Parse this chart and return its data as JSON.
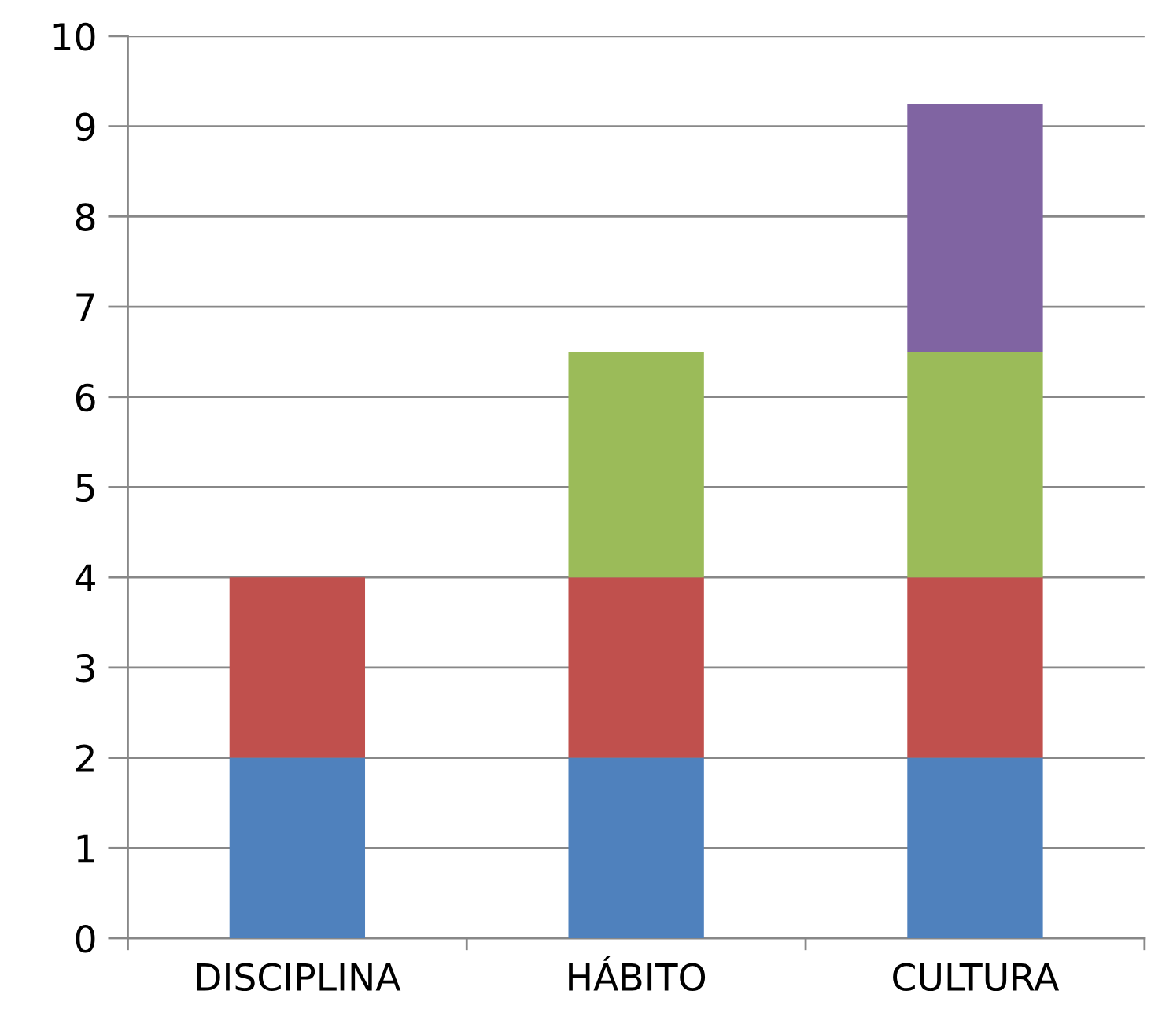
{
  "chart_data": {
    "type": "bar",
    "stacked": true,
    "categories": [
      "DISCIPLINA",
      "HÁBITO",
      "CULTURA"
    ],
    "series": [
      {
        "color": "#4f81bd",
        "values": [
          2,
          2,
          2
        ]
      },
      {
        "color": "#c0504d",
        "values": [
          2,
          2,
          2
        ]
      },
      {
        "color": "#9bbb59",
        "values": [
          null,
          2.5,
          2.5
        ]
      },
      {
        "color": "#8064a2",
        "values": [
          null,
          null,
          2.75
        ]
      }
    ],
    "ylim": [
      0,
      10
    ],
    "yticks": [
      0,
      1,
      2,
      3,
      4,
      5,
      6,
      7,
      8,
      9,
      10
    ],
    "grid": "y",
    "legend": false
  }
}
